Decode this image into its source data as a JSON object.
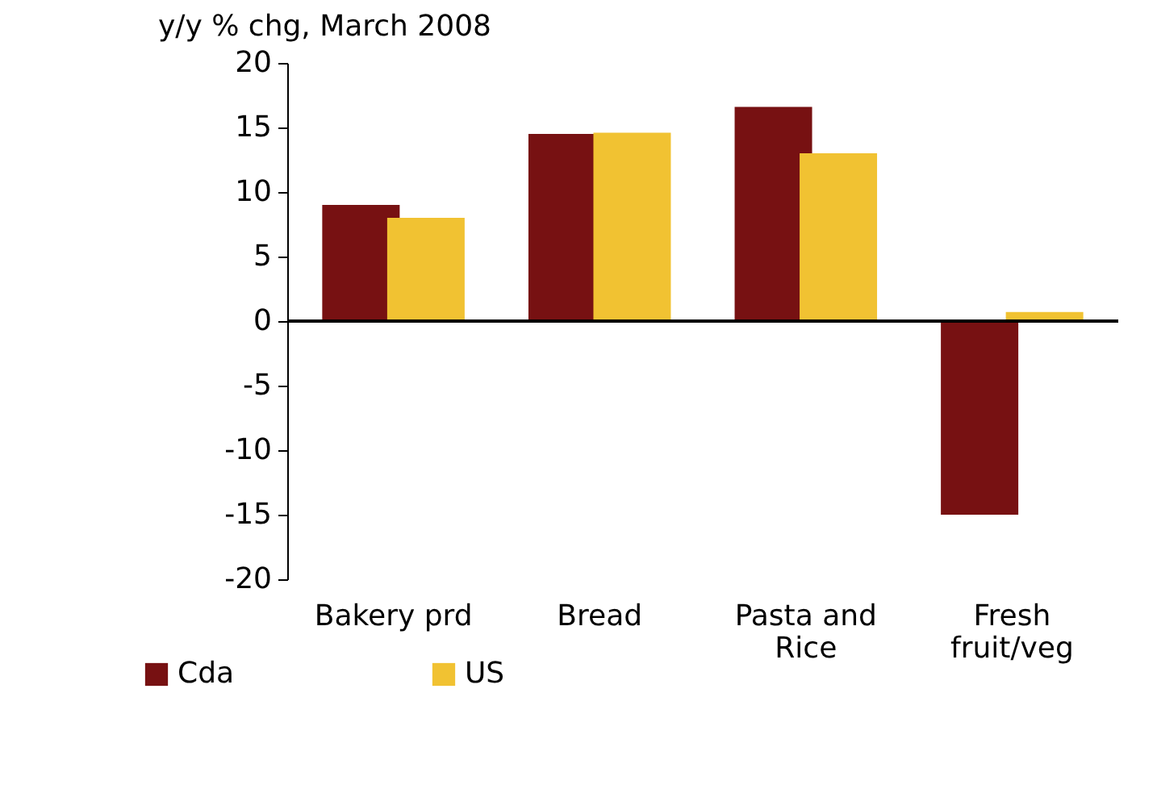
{
  "chart_data": {
    "type": "bar",
    "title": "y/y % chg, March 2008",
    "categories": [
      "Bakery prd",
      "Bread",
      "Pasta and Rice",
      "Fresh fruit/veg"
    ],
    "series": [
      {
        "name": "Cda",
        "color": "#771112",
        "values": [
          9.0,
          14.5,
          16.6,
          -15.0
        ]
      },
      {
        "name": "US",
        "color": "#f1c232",
        "values": [
          8.0,
          14.6,
          13.0,
          0.7
        ]
      }
    ],
    "ylim": [
      -20,
      20
    ],
    "yticks": [
      -20,
      -15,
      -10,
      -5,
      0,
      5,
      10,
      15,
      20
    ],
    "ref_lines": [
      {
        "axis": "y",
        "value": 0,
        "color": "#000000"
      }
    ],
    "grid": false,
    "legend": "bottom left"
  }
}
